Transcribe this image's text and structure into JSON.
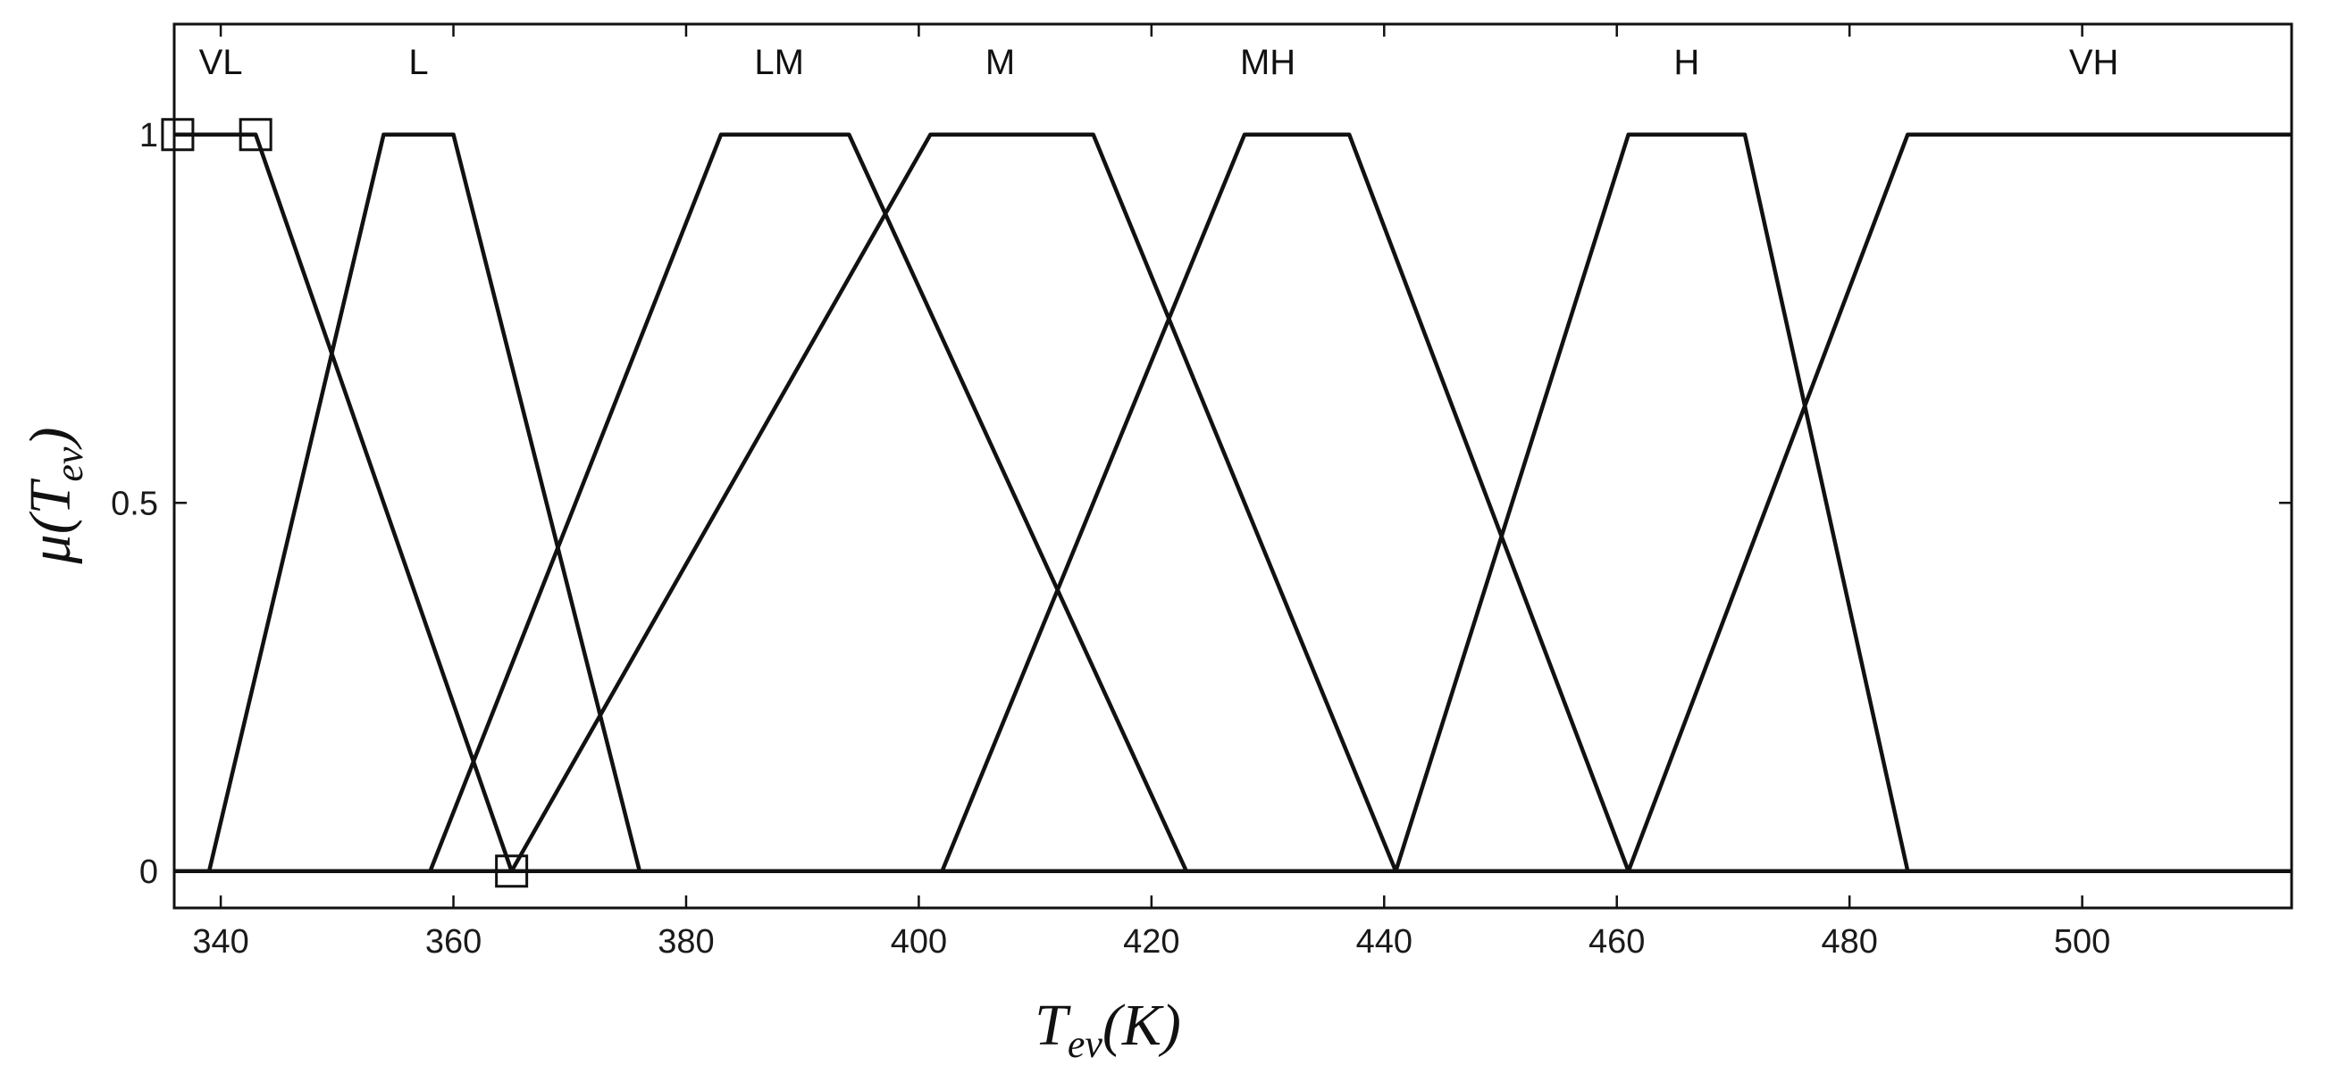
{
  "chart_data": {
    "type": "line",
    "xlabel_main": "T",
    "xlabel_sub": "ev",
    "xlabel_unit": "(K)",
    "ylabel_prefix": "μ(T",
    "ylabel_sub": "ev",
    "ylabel_suffix": ")",
    "xlim": [
      336,
      518
    ],
    "ylim": [
      -0.05,
      1.15
    ],
    "xticks": [
      340,
      360,
      380,
      400,
      420,
      440,
      460,
      480,
      500
    ],
    "yticks": [
      0,
      0.5,
      1
    ],
    "ytick_labels": [
      "0",
      "0.5",
      "1"
    ],
    "grid": false,
    "series": [
      {
        "name": "VL",
        "label_x": 340,
        "x": [
          336,
          343,
          365,
          518
        ],
        "y": [
          1,
          1,
          0,
          0
        ]
      },
      {
        "name": "L",
        "label_x": 357,
        "x": [
          336,
          339,
          354,
          360,
          376,
          518
        ],
        "y": [
          0,
          0,
          1,
          1,
          0,
          0
        ]
      },
      {
        "name": "LM",
        "label_x": 388,
        "x": [
          336,
          358,
          383,
          394,
          423,
          518
        ],
        "y": [
          0,
          0,
          1,
          1,
          0,
          0
        ]
      },
      {
        "name": "M",
        "label_x": 407,
        "x": [
          336,
          365,
          401,
          415,
          441,
          518
        ],
        "y": [
          0,
          0,
          1,
          1,
          0,
          0
        ]
      },
      {
        "name": "MH",
        "label_x": 430,
        "x": [
          336,
          402,
          428,
          437,
          461,
          518
        ],
        "y": [
          0,
          0,
          1,
          1,
          0,
          0
        ]
      },
      {
        "name": "H",
        "label_x": 466,
        "x": [
          336,
          441,
          461,
          471,
          485,
          518
        ],
        "y": [
          0,
          0,
          1,
          1,
          0,
          0
        ]
      },
      {
        "name": "VH",
        "label_x": 501,
        "x": [
          336,
          461,
          485,
          518
        ],
        "y": [
          0,
          0,
          1,
          1
        ]
      }
    ],
    "handles": [
      {
        "x": 336.3,
        "y": 1
      },
      {
        "x": 343,
        "y": 1
      },
      {
        "x": 365,
        "y": 0
      }
    ]
  }
}
